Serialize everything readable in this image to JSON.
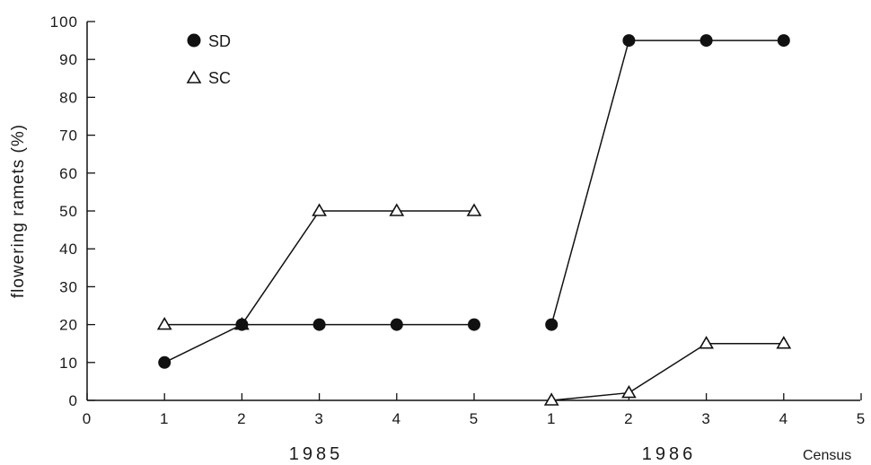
{
  "chart_data": {
    "type": "line",
    "title": "",
    "ylabel": "flowering ramets (%)",
    "xlabel": "Census",
    "ylim": [
      0,
      100
    ],
    "yticks": [
      0,
      10,
      20,
      30,
      40,
      50,
      60,
      70,
      80,
      90,
      100
    ],
    "grid": false,
    "legend_position": "top-left",
    "groups": [
      {
        "label": "1985",
        "x_ticks": [
          "0",
          "1",
          "2",
          "3",
          "4",
          "5"
        ]
      },
      {
        "label": "1986",
        "x_ticks": [
          "1",
          "2",
          "3",
          "4",
          "5"
        ]
      }
    ],
    "series": [
      {
        "name": "SD",
        "marker": "filled-circle",
        "color": "#111111",
        "segments": [
          {
            "group": "1985",
            "x": [
              1,
              2,
              3,
              4,
              5
            ],
            "y": [
              10,
              20,
              20,
              20,
              20
            ]
          },
          {
            "group": "1986",
            "x": [
              1,
              2,
              3,
              4
            ],
            "y": [
              20,
              95,
              95,
              95
            ]
          }
        ]
      },
      {
        "name": "SC",
        "marker": "open-triangle",
        "color": "#111111",
        "segments": [
          {
            "group": "1985",
            "x": [
              1,
              2,
              3,
              4,
              5
            ],
            "y": [
              20,
              20,
              50,
              50,
              50
            ]
          },
          {
            "group": "1986",
            "x": [
              1,
              2,
              3,
              4
            ],
            "y": [
              0,
              2,
              15,
              15
            ]
          }
        ]
      }
    ]
  }
}
